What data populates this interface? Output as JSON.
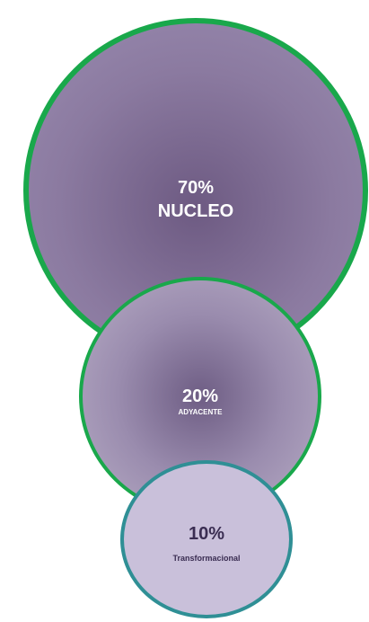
{
  "diagram": {
    "circles": [
      {
        "percent": "70%",
        "label": "NUCLEO",
        "fill": "#8b7aa0",
        "border": "#19a84b"
      },
      {
        "percent": "20%",
        "label": "ADYACENTE",
        "fill": "#9a8cae",
        "border": "#19a84b"
      },
      {
        "percent": "10%",
        "label": "Transformacional",
        "fill": "#c9c0da",
        "border": "#2f8f95"
      }
    ]
  }
}
